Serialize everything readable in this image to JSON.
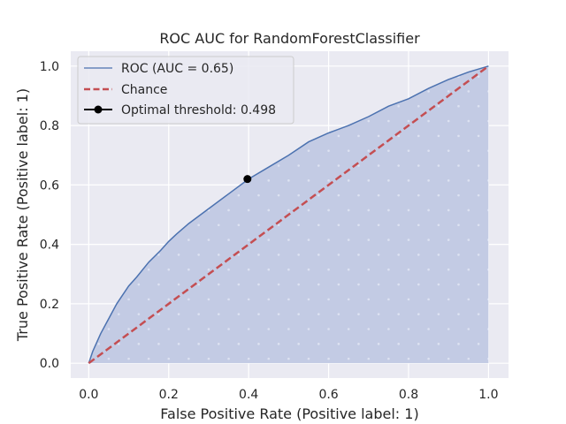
{
  "chart_data": {
    "type": "line",
    "title": "ROC AUC for RandomForestClassifier",
    "xlabel": "False Positive Rate (Positive label: 1)",
    "ylabel": "True Positive Rate (Positive label: 1)",
    "xlim": [
      -0.045,
      1.05
    ],
    "ylim": [
      -0.05,
      1.05
    ],
    "xticks": [
      0.0,
      0.2,
      0.4,
      0.6,
      0.8,
      1.0
    ],
    "yticks": [
      0.0,
      0.2,
      0.4,
      0.6,
      0.8,
      1.0
    ],
    "tick_labels": [
      "0.0",
      "0.2",
      "0.4",
      "0.6",
      "0.8",
      "1.0"
    ],
    "grid": true,
    "legend_position": "top-left",
    "series": [
      {
        "name": "ROC (AUC = 0.65)",
        "kind": "roc",
        "color": "#4c72b0",
        "fill": "#c3cbe4",
        "x": [
          0.0,
          0.01,
          0.02,
          0.03,
          0.05,
          0.07,
          0.1,
          0.12,
          0.15,
          0.18,
          0.2,
          0.22,
          0.25,
          0.3,
          0.35,
          0.4,
          0.45,
          0.5,
          0.55,
          0.6,
          0.65,
          0.7,
          0.75,
          0.8,
          0.85,
          0.9,
          0.95,
          1.0
        ],
        "y": [
          0.0,
          0.04,
          0.07,
          0.1,
          0.15,
          0.2,
          0.26,
          0.29,
          0.34,
          0.38,
          0.41,
          0.435,
          0.47,
          0.52,
          0.57,
          0.62,
          0.66,
          0.7,
          0.745,
          0.775,
          0.8,
          0.83,
          0.865,
          0.89,
          0.925,
          0.955,
          0.98,
          1.0
        ]
      },
      {
        "name": "Chance",
        "kind": "chance",
        "color": "#c44e52",
        "x": [
          0.0,
          1.0
        ],
        "y": [
          0.0,
          1.0
        ]
      },
      {
        "name": "Optimal threshold: 0.498",
        "kind": "point",
        "color": "#000000",
        "x": [
          0.397
        ],
        "y": [
          0.62
        ]
      }
    ]
  }
}
